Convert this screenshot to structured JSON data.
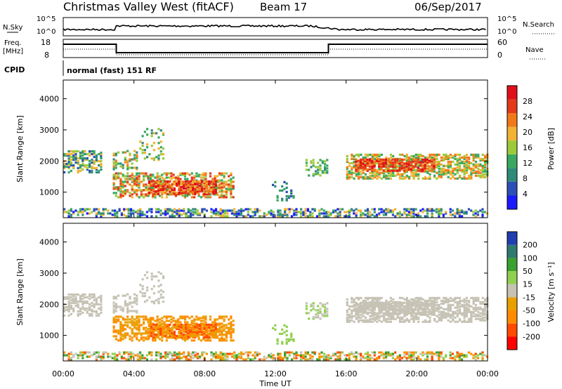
{
  "header": {
    "site": "Christmas Valley West (fitACF)",
    "beam": "Beam 17",
    "date": "06/Sep/2017"
  },
  "left_labels": {
    "nsky": "N.Sky",
    "freq": "Freq.",
    "freq_unit": "[MHz]",
    "cpid": "CPID"
  },
  "right_labels": {
    "nsearch": "N.Search",
    "nave": "Nave"
  },
  "cpid_value": "normal (fast) 151 RF",
  "colors": {
    "power_scale": [
      "#1a1aff",
      "#2b4fb5",
      "#2f8a7a",
      "#3aa860",
      "#9cc93a",
      "#f2b233",
      "#f07a1a",
      "#e33a1a",
      "#e0101a"
    ],
    "velocity_scale": [
      "#ff0000",
      "#ff4a00",
      "#ff8c00",
      "#e8a000",
      "#c6c3b5",
      "#90d050",
      "#3aa030",
      "#2f7a70",
      "#1f3fb0"
    ],
    "ground_scatter": "#b8b6ab"
  },
  "chart_data": [
    {
      "type": "line",
      "name": "noise_panel",
      "left_axis": {
        "ticks": [
          "10^5",
          "10^0"
        ],
        "label": "N.Sky"
      },
      "right_axis": {
        "ticks": [
          "10^5",
          "10^0"
        ],
        "label": "N.Search"
      }
    },
    {
      "type": "line",
      "name": "frequency_panel",
      "left_axis": {
        "ticks": [
          "18",
          "8"
        ],
        "label": "Freq. [MHz]"
      },
      "right_axis": {
        "ticks": [
          "60",
          "0"
        ],
        "label": "Nave"
      },
      "step_x_hours": [
        0,
        3,
        3,
        15,
        15,
        24
      ],
      "step_level": [
        "high",
        "high",
        "low",
        "low",
        "high",
        "high"
      ]
    },
    {
      "type": "heatmap",
      "name": "power",
      "ylabel": "Slant Range [km]",
      "yticks": [
        1000,
        2000,
        3000,
        4000
      ],
      "ylim": [
        180,
        4600
      ],
      "xlim_hours": [
        0,
        24
      ],
      "colorbar": {
        "label": "Power [dB]",
        "ticks": [
          "4",
          "8",
          "12",
          "16",
          "20",
          "24",
          "28"
        ]
      }
    },
    {
      "type": "heatmap",
      "name": "velocity",
      "ylabel": "Slant Range [km]",
      "yticks": [
        1000,
        2000,
        3000,
        4000
      ],
      "ylim": [
        180,
        4600
      ],
      "xlim_hours": [
        0,
        24
      ],
      "colorbar": {
        "label": "Velocity [m s⁻¹]",
        "ticks": [
          "200",
          "100",
          "50",
          "15",
          "-15",
          "-50",
          "-100",
          "-200"
        ]
      }
    }
  ],
  "x_axis": {
    "ticks": [
      "00:00",
      "04:00",
      "08:00",
      "12:00",
      "16:00",
      "20:00",
      "00:00"
    ],
    "label": "Time UT"
  }
}
